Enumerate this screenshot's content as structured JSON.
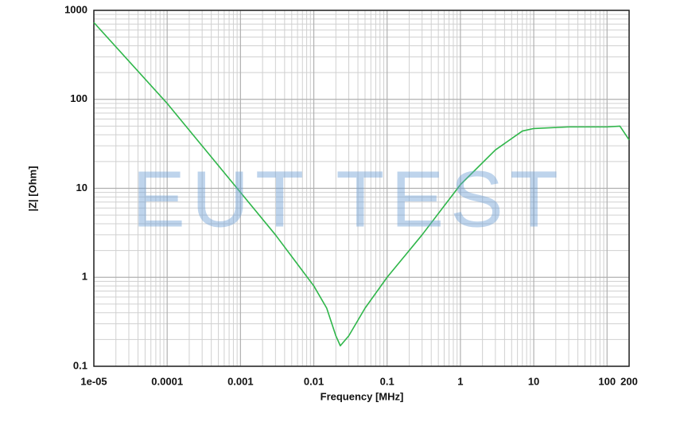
{
  "chart_data": {
    "type": "line",
    "xlabel": "Frequency [MHz]",
    "ylabel": "|Z| [Ohm]",
    "watermark": "EUT TEST",
    "x": [
      1e-05,
      0.0001,
      0.001,
      0.003,
      0.01,
      0.015,
      0.02,
      0.023,
      0.03,
      0.05,
      0.1,
      0.3,
      1,
      3,
      7,
      10,
      30,
      100,
      150,
      200
    ],
    "values": [
      730,
      90,
      9,
      3,
      0.8,
      0.45,
      0.22,
      0.17,
      0.22,
      0.45,
      1.0,
      3,
      11,
      27,
      44,
      47,
      49,
      49,
      50,
      35
    ],
    "color": "#2fb64a",
    "xscale": "log",
    "yscale": "log",
    "xlim": [
      1e-05,
      200
    ],
    "ylim": [
      0.1,
      1000
    ],
    "xticks": [
      {
        "value": 1e-05,
        "label": "1e-05"
      },
      0.0001,
      0.001,
      0.01,
      0.1,
      1,
      10,
      100,
      200
    ],
    "yticks": [
      0.1,
      1,
      10,
      100,
      1000
    ],
    "grid": true,
    "minor_grid": true
  }
}
